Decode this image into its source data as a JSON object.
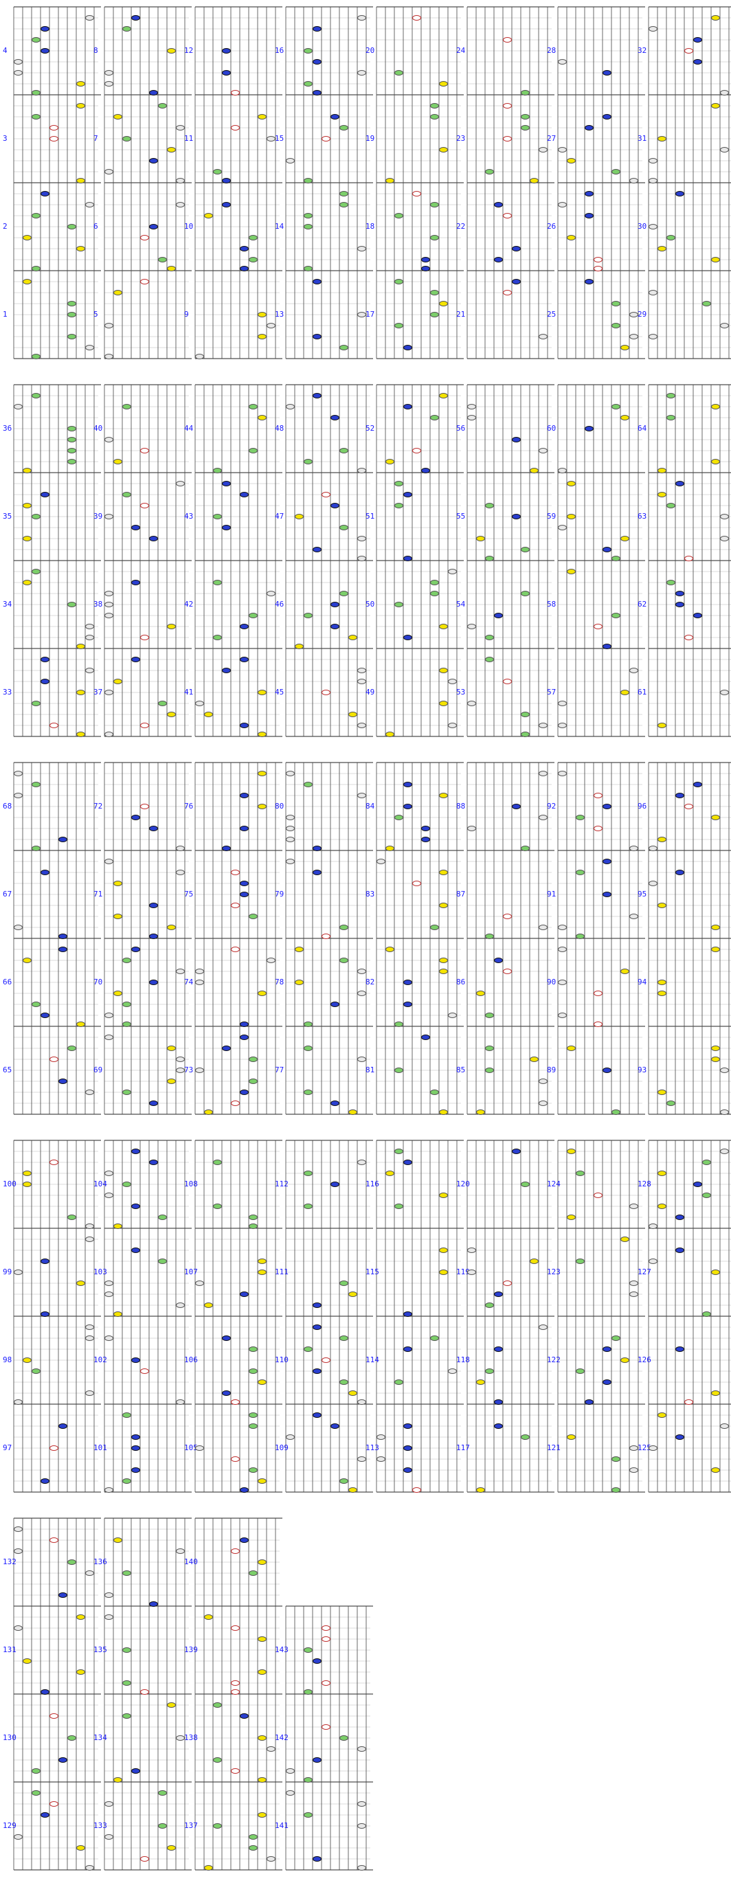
{
  "measures": [
    "1",
    "2",
    "3",
    "4",
    "5",
    "6",
    "7",
    "8",
    "9",
    "10",
    "11",
    "12",
    "13",
    "14",
    "15",
    "16",
    "17",
    "18",
    "19",
    "20",
    "21",
    "22",
    "23",
    "24",
    "25",
    "26",
    "27",
    "28",
    "29",
    "30",
    "31",
    "32",
    "33",
    "34",
    "35",
    "36",
    "37",
    "38",
    "39",
    "40",
    "41",
    "42",
    "43",
    "44",
    "45",
    "46",
    "47",
    "48",
    "49",
    "50",
    "51",
    "52",
    "53",
    "54",
    "55",
    "56",
    "57",
    "58",
    "59",
    "60",
    "61",
    "62",
    "63",
    "64",
    "65",
    "66",
    "67",
    "68",
    "69",
    "70",
    "71",
    "72",
    "73",
    "74",
    "75",
    "76",
    "77",
    "78",
    "79",
    "80",
    "81",
    "82",
    "83",
    "84",
    "85",
    "86",
    "87",
    "88",
    "89",
    "90",
    "91",
    "92",
    "93",
    "94",
    "95",
    "96",
    "97",
    "98",
    "99",
    "100",
    "101",
    "102",
    "103",
    "104",
    "105",
    "106",
    "107",
    "108",
    "109",
    "110",
    "111",
    "112",
    "113",
    "114",
    "115",
    "116",
    "117",
    "118",
    "119",
    "120",
    "121",
    "122",
    "123",
    "124",
    "125",
    "126",
    "127",
    "128",
    "129",
    "130",
    "131",
    "132",
    "133",
    "134",
    "135",
    "136",
    "137",
    "138",
    "139",
    "140",
    "141",
    "142",
    "143"
  ]
}
